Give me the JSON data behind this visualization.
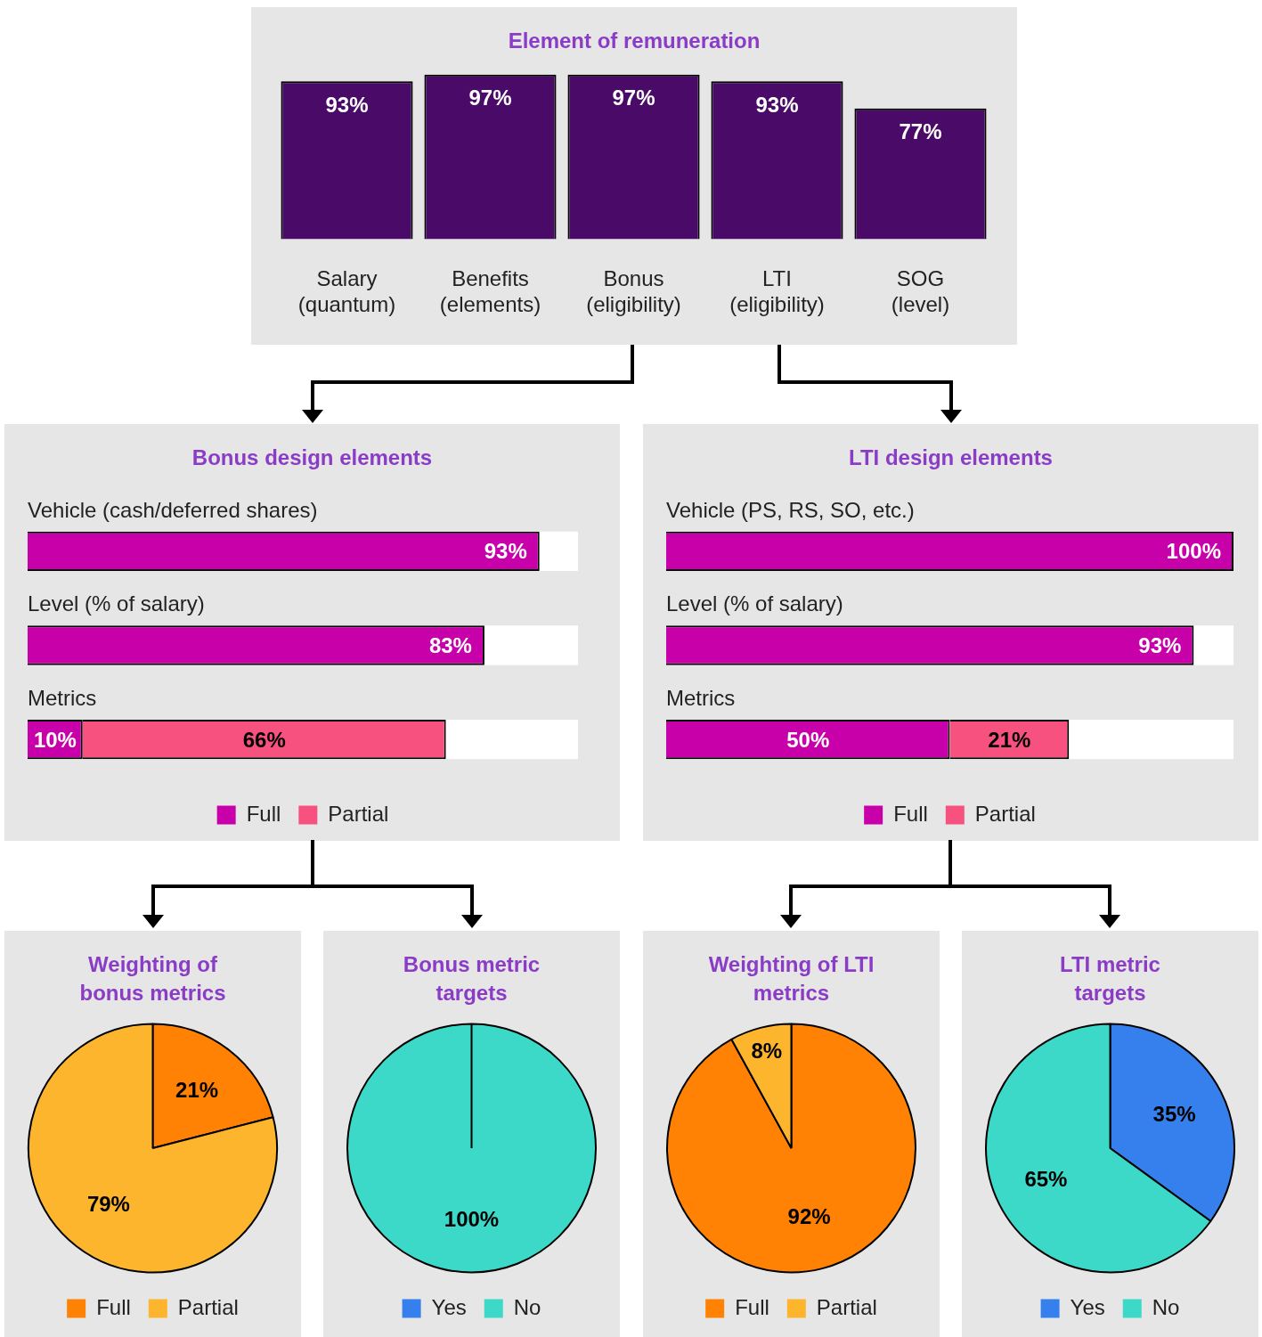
{
  "chart_data": [
    {
      "type": "bar",
      "title": "Element of remuneration",
      "categories": [
        "Salary (quantum)",
        "Benefits (elements)",
        "Bonus (eligibility)",
        "LTI (eligibility)",
        "SOG (level)"
      ],
      "values": [
        93,
        97,
        97,
        93,
        77
      ],
      "color": "#4a0a68",
      "value_labels": [
        "93%",
        "97%",
        "97%",
        "93%",
        "77%"
      ],
      "ylim": [
        0,
        100
      ],
      "tick_labels": "x"
    },
    {
      "type": "bar",
      "title": "Bonus design elements",
      "orientation": "horizontal",
      "stacked": true,
      "categories": [
        "Vehicle (cash/deferred shares)",
        "Level (% of salary)",
        "Metrics"
      ],
      "xlim": [
        0,
        100
      ],
      "tick_labels": "y",
      "legend": "bottom",
      "series": [
        {
          "name": "Full",
          "color": "#c800aa",
          "values": [
            93,
            83,
            10
          ],
          "value_labels": [
            "93%",
            "83%",
            "10%"
          ]
        },
        {
          "name": "Partial",
          "color": "#f7527f",
          "values": [
            null,
            null,
            66
          ],
          "value_labels": [
            null,
            null,
            "66%"
          ]
        }
      ]
    },
    {
      "type": "bar",
      "title": "LTI design elements",
      "orientation": "horizontal",
      "stacked": true,
      "categories": [
        "Vehicle (PS, RS, SO, etc.)",
        "Level (% of salary)",
        "Metrics"
      ],
      "xlim": [
        0,
        100
      ],
      "tick_labels": "y",
      "legend": "bottom",
      "series": [
        {
          "name": "Full",
          "color": "#c800aa",
          "values": [
            100,
            93,
            50
          ],
          "value_labels": [
            "100%",
            "93%",
            "50%"
          ]
        },
        {
          "name": "Partial",
          "color": "#f7527f",
          "values": [
            null,
            null,
            21
          ],
          "value_labels": [
            null,
            null,
            "21%"
          ]
        }
      ]
    },
    {
      "type": "pie",
      "title": "Weighting of bonus metrics",
      "categories": [
        "Full",
        "Partial"
      ],
      "values": [
        21,
        79
      ],
      "colors": [
        "#ff8205",
        "#fdb52d"
      ],
      "value_labels": [
        "21%",
        "79%"
      ],
      "legend": "bottom"
    },
    {
      "type": "pie",
      "title": "Bonus metric targets",
      "categories": [
        "Yes",
        "No"
      ],
      "values": [
        0,
        100
      ],
      "colors": [
        "#3680ee",
        "#3cd9c8"
      ],
      "value_labels": [
        null,
        "100%"
      ],
      "legend": "bottom"
    },
    {
      "type": "pie",
      "title": "Weighting of LTI metrics",
      "categories": [
        "Full",
        "Partial"
      ],
      "values": [
        92,
        8
      ],
      "colors": [
        "#ff8205",
        "#fdb52d"
      ],
      "value_labels": [
        "92%",
        "8%"
      ],
      "legend": "bottom"
    },
    {
      "type": "pie",
      "title": "LTI metric targets",
      "categories": [
        "Yes",
        "No"
      ],
      "values": [
        35,
        65
      ],
      "colors": [
        "#3680ee",
        "#3cd9c8"
      ],
      "value_labels": [
        "35%",
        "65%"
      ],
      "legend": "bottom"
    }
  ]
}
